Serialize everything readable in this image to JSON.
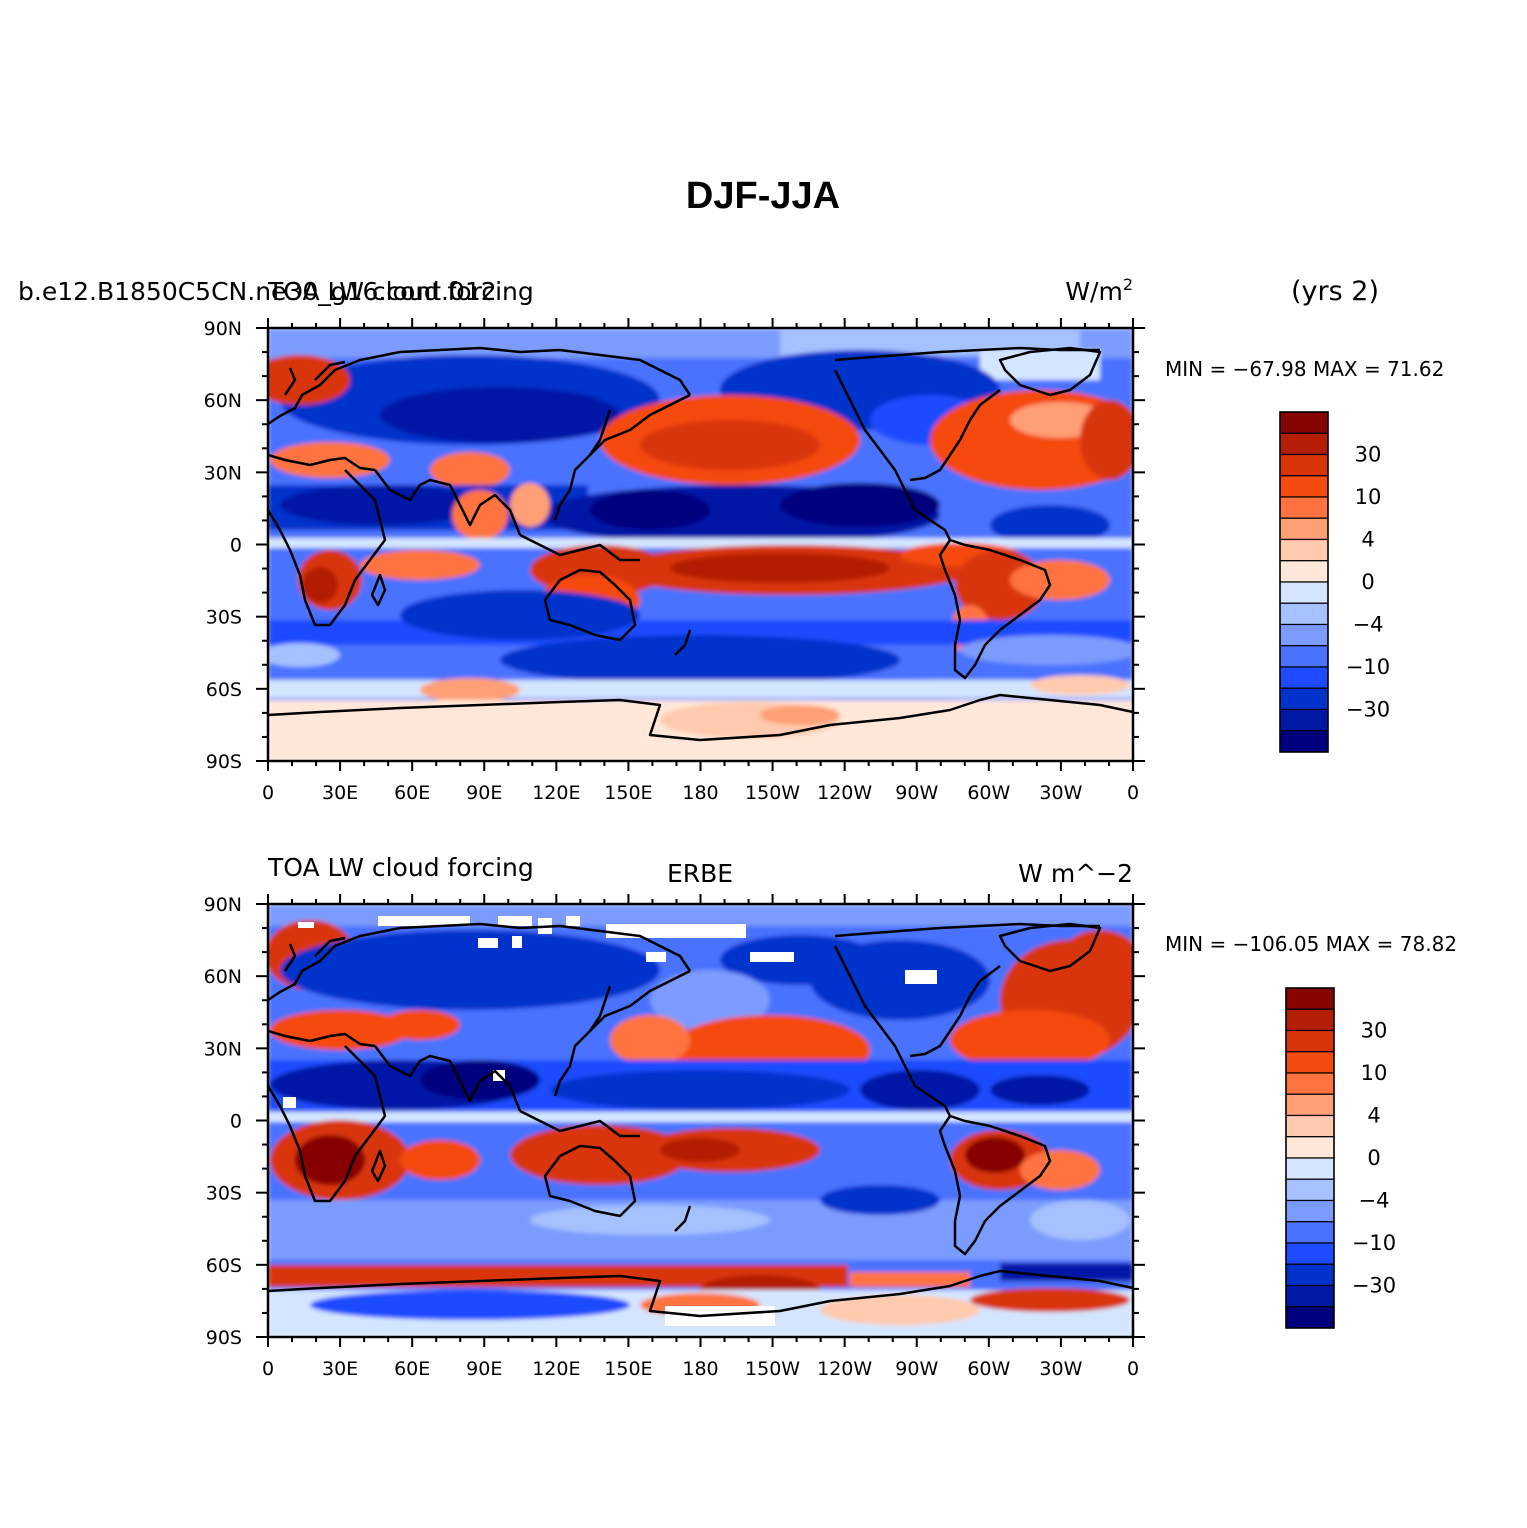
{
  "figure": {
    "title": "DJF-JJA",
    "colors": [
      "#00007f",
      "#0019a6",
      "#0032cc",
      "#1e4bff",
      "#4a72ff",
      "#7b9bff",
      "#a6c1ff",
      "#d4e6ff",
      "#ffe8d9",
      "#ffcaad",
      "#ff9f74",
      "#ff7340",
      "#f54a10",
      "#d93408",
      "#b31e04",
      "#870500"
    ],
    "colorbar_labels": [
      "30",
      "10",
      "4",
      "0",
      "−4",
      "−10",
      "−30"
    ]
  },
  "panels": [
    {
      "id": "model",
      "left_text": "b.e12.B1850C5CN.ne30_g16.cont.012",
      "left_text_overlay": "TOA LW cloud forcing",
      "center_text": "",
      "right_text": "W/m",
      "right_text_sup": "2",
      "extra_text": "(yrs 2)",
      "min_max_text": "MIN = −67.98  MAX =  71.62"
    },
    {
      "id": "obs",
      "left_text": "TOA LW cloud forcing",
      "left_text_overlay": "",
      "center_text": "ERBE",
      "right_text": "W m^−2",
      "right_text_sup": "",
      "extra_text": "",
      "min_max_text": "MIN = −106.05  MAX =  78.82"
    }
  ],
  "axes": {
    "lat_labels": [
      "90N",
      "60N",
      "30N",
      "0",
      "30S",
      "60S",
      "90S"
    ],
    "lon_labels": [
      "0",
      "30E",
      "60E",
      "90E",
      "120E",
      "150E",
      "180",
      "150W",
      "120W",
      "90W",
      "60W",
      "30W",
      "0"
    ]
  }
}
